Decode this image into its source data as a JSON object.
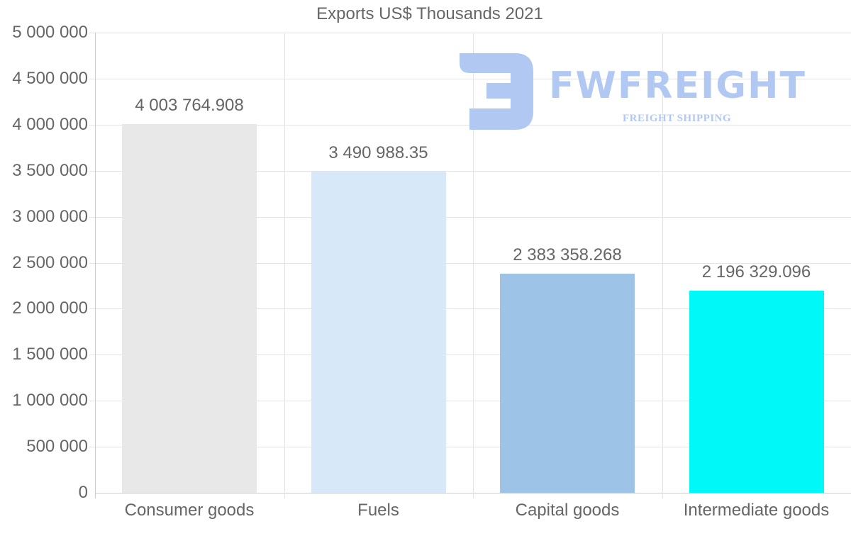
{
  "chart_data": {
    "type": "bar",
    "title": "Exports US$ Thousands 2021",
    "xlabel": "",
    "ylabel": "",
    "categories": [
      "Consumer goods",
      "Fuels",
      "Capital goods",
      "Intermediate goods"
    ],
    "values": [
      4003764.908,
      3490988.35,
      2383358.268,
      2196329.096
    ],
    "value_labels": [
      "4 003 764.908",
      "3 490 988.35",
      "2 383 358.268",
      "2 196 329.096"
    ],
    "colors": [
      "#e8e8e8",
      "#d7e8f8",
      "#9dc4e6",
      "#00f8f8"
    ],
    "ylim": [
      0,
      5000000
    ],
    "yticks": [
      0,
      500000,
      1000000,
      1500000,
      2000000,
      2500000,
      3000000,
      3500000,
      4000000,
      4500000,
      5000000
    ],
    "ytick_labels": [
      "0",
      "500 000",
      "1 000 000",
      "1 500 000",
      "2 000 000",
      "2 500 000",
      "3 000 000",
      "3 500 000",
      "4 000 000",
      "4 500 000",
      "5 000 000"
    ],
    "grid": true,
    "legend": null
  },
  "watermark": {
    "brand": "FWFREIGHT",
    "tagline": "FREIGHT SHIPPING",
    "color": "#b1c9f2"
  }
}
